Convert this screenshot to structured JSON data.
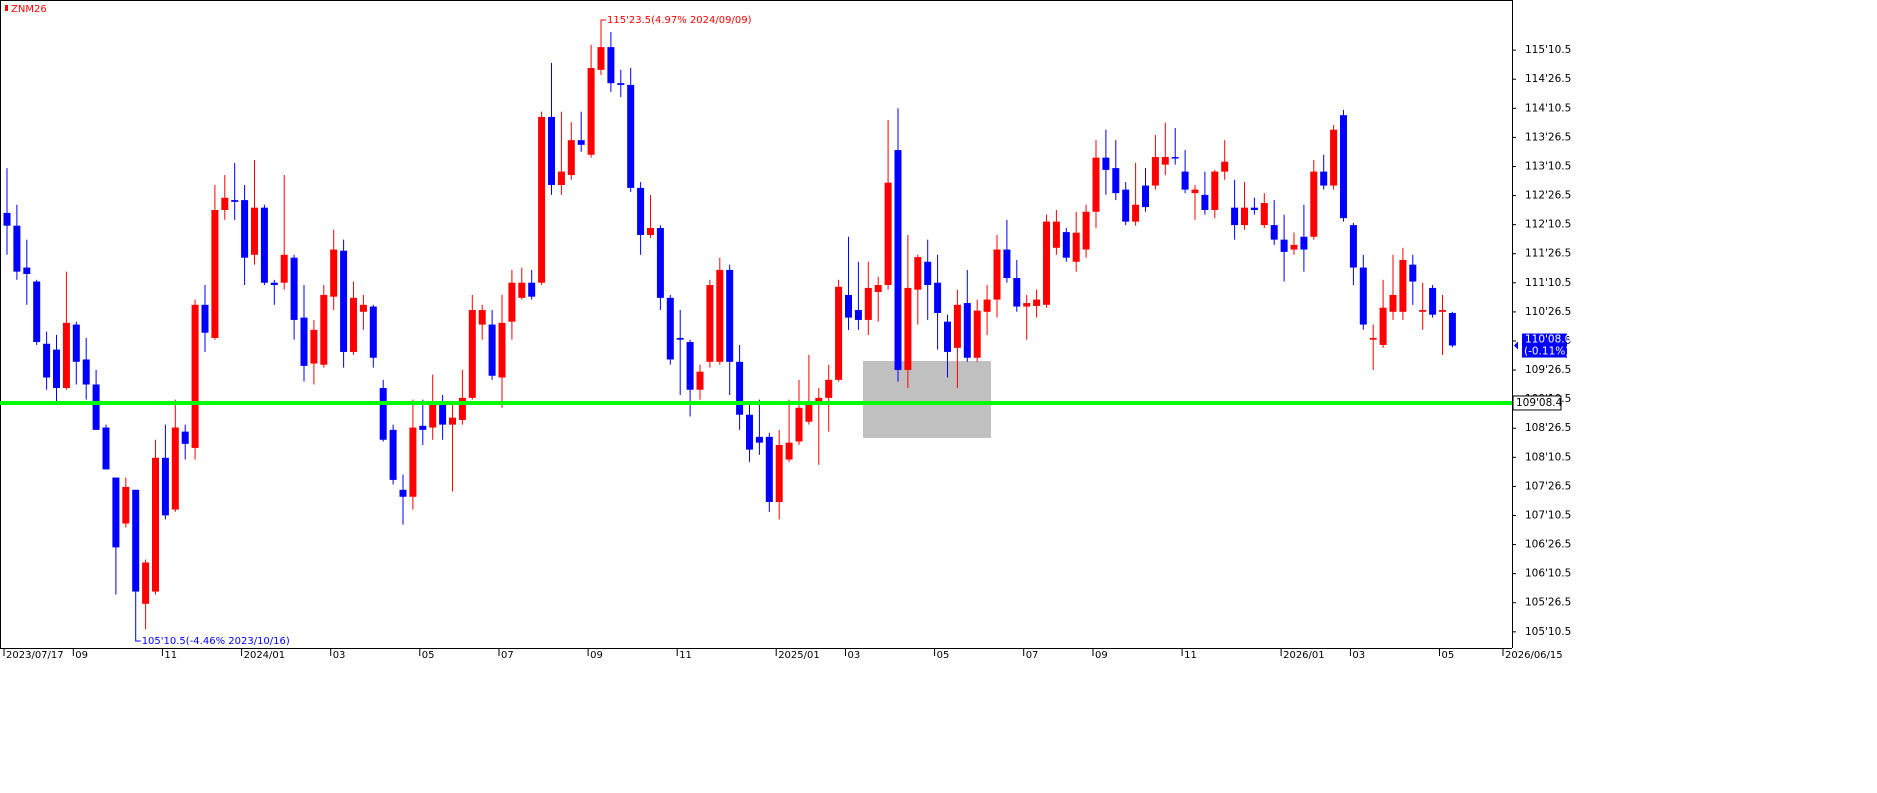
{
  "chart_data": {
    "type": "candlestick",
    "title": "ZNM26",
    "up_color": "#ff0000",
    "down_color": "#0000ff",
    "categories": [
      "2023/07/17",
      null,
      null,
      null,
      null,
      null,
      null,
      "09",
      null,
      null,
      null,
      null,
      null,
      null,
      null,
      null,
      "11",
      null,
      null,
      null,
      null,
      null,
      null,
      null,
      "2024/01",
      null,
      null,
      null,
      null,
      null,
      null,
      null,
      null,
      "03",
      null,
      null,
      null,
      null,
      null,
      null,
      null,
      null,
      "05",
      null,
      null,
      null,
      null,
      null,
      null,
      null,
      "07",
      null,
      null,
      null,
      null,
      null,
      null,
      null,
      null,
      "09",
      null,
      null,
      null,
      null,
      null,
      null,
      null,
      null,
      "11",
      null,
      null,
      null,
      null,
      null,
      null,
      null,
      null,
      null,
      "2025/01",
      null,
      null,
      null,
      null,
      null,
      null,
      "03",
      null,
      null,
      null,
      null,
      null,
      null,
      null,
      null,
      "05",
      null,
      null,
      null,
      null,
      null,
      null,
      null,
      null,
      "07",
      null,
      null,
      null,
      null,
      null,
      null,
      "09",
      null,
      null,
      null,
      null,
      null,
      null,
      null,
      null,
      "11",
      null,
      null,
      null,
      null,
      null,
      null,
      null,
      null,
      null,
      "2026/01",
      null,
      null,
      null,
      null,
      null,
      null,
      "03",
      null,
      null,
      null,
      null,
      null,
      null,
      null,
      null,
      "05",
      null
    ],
    "x_axis_end_label": "2026/06/15",
    "open": [
      112.53,
      112.31,
      111.59,
      111.35,
      110.28,
      110.18,
      109.52,
      110.61,
      110.01,
      109.58,
      108.84,
      107.98,
      107.19,
      107.77,
      105.81,
      106.02,
      108.32,
      107.43,
      108.77,
      108.49,
      110.95,
      110.38,
      112.58,
      112.75,
      112.75,
      111.81,
      112.62,
      111.33,
      111.33,
      111.76,
      110.73,
      109.94,
      109.92,
      111.09,
      111.88,
      110.14,
      110.83,
      110.92,
      109.52,
      108.8,
      107.77,
      107.65,
      108.87,
      108.84,
      109.27,
      108.89,
      108.97,
      109.35,
      110.61,
      110.61,
      109.7,
      110.66,
      111.07,
      111.33,
      111.33,
      114.18,
      113.01,
      113.18,
      113.78,
      113.53,
      114.99,
      115.38,
      114.76,
      114.73,
      112.96,
      112.15,
      112.27,
      111.07,
      110.38,
      110.31,
      109.49,
      109.97,
      109.97,
      111.55,
      109.97,
      109.06,
      108.68,
      108.68,
      107.56,
      108.29,
      108.6,
      108.94,
      109.28,
      109.35,
      109.66,
      111.12,
      110.86,
      110.69,
      111.17,
      111.29,
      113.61,
      109.83,
      111.21,
      111.69,
      111.33,
      110.66,
      110.21,
      110.98,
      110.04,
      110.83,
      111.04,
      111.9,
      111.41,
      110.92,
      110.93,
      110.95,
      111.93,
      112.2,
      111.69,
      111.9,
      112.55,
      113.48,
      113.3,
      112.93,
      112.38,
      113.0,
      113.0,
      113.36,
      113.49,
      113.24,
      112.87,
      112.84,
      112.58,
      113.24,
      112.62,
      112.32,
      112.62,
      112.32,
      112.32,
      112.07,
      111.9,
      112.12,
      112.12,
      113.24,
      113.0,
      114.21,
      112.32,
      111.59,
      110.35,
      110.26,
      110.83,
      110.83,
      111.64,
      110.83,
      111.24,
      110.83,
      110.81
    ],
    "high": [
      113.3,
      112.67,
      112.07,
      111.38,
      110.49,
      110.43,
      111.52,
      110.66,
      110.38,
      109.83,
      108.89,
      107.98,
      107.98,
      107.77,
      106.57,
      108.63,
      108.89,
      109.32,
      108.89,
      111.04,
      111.29,
      113.01,
      113.18,
      113.39,
      113.01,
      113.44,
      112.67,
      111.38,
      113.18,
      111.81,
      111.29,
      110.69,
      111.29,
      112.24,
      112.07,
      111.35,
      111.12,
      110.95,
      109.66,
      108.89,
      108.03,
      109.32,
      109.32,
      109.75,
      109.4,
      109.23,
      109.83,
      111.12,
      110.95,
      110.86,
      111.12,
      111.55,
      111.59,
      111.55,
      114.27,
      115.11,
      114.27,
      114.09,
      114.27,
      115.42,
      115.734375,
      115.64,
      114.99,
      115.02,
      113.06,
      112.84,
      112.32,
      111.12,
      110.86,
      110.35,
      109.92,
      111.38,
      111.76,
      111.64,
      110.26,
      109.23,
      109.32,
      108.75,
      108.8,
      109.32,
      109.66,
      110.09,
      109.52,
      109.92,
      111.38,
      112.12,
      111.69,
      111.69,
      111.43,
      114.13,
      114.33,
      112.15,
      111.81,
      112.07,
      111.81,
      110.78,
      111.21,
      111.55,
      111.04,
      111.29,
      112.15,
      112.41,
      111.72,
      111.12,
      111.21,
      112.5,
      112.58,
      112.27,
      112.55,
      112.67,
      113.78,
      113.96,
      113.78,
      113.06,
      113.39,
      113.3,
      113.87,
      114.08,
      113.99,
      113.61,
      113.01,
      113.24,
      113.27,
      113.78,
      113.1,
      113.06,
      112.79,
      112.87,
      112.75,
      112.5,
      112.19,
      112.67,
      113.44,
      113.53,
      114.04,
      114.3,
      112.36,
      111.81,
      110.61,
      111.38,
      111.81,
      111.93,
      111.81,
      111.33,
      111.29,
      111.12,
      110.83
    ],
    "low": [
      111.81,
      111.38,
      110.95,
      110.26,
      109.49,
      109.23,
      109.49,
      109.58,
      109.32,
      108.8,
      108.12,
      105.97,
      107.12,
      105.328125,
      105.37,
      105.97,
      107.26,
      107.39,
      108.29,
      108.29,
      110.14,
      110.35,
      112.41,
      112.41,
      111.29,
      111.64,
      111.29,
      110.95,
      111.21,
      110.35,
      109.63,
      109.58,
      109.87,
      110.86,
      109.87,
      110.09,
      110.52,
      109.87,
      108.6,
      107.86,
      107.17,
      107.43,
      108.54,
      108.63,
      108.63,
      107.74,
      108.89,
      109.32,
      110.35,
      109.66,
      109.18,
      110.35,
      111.04,
      111.04,
      111.29,
      112.84,
      112.84,
      113.1,
      113.58,
      113.48,
      114.9,
      114.61,
      114.52,
      112.89,
      111.81,
      112.1,
      110.86,
      109.92,
      109.4,
      109.03,
      109.32,
      109.87,
      109.92,
      109.4,
      108.8,
      108.25,
      108.37,
      107.39,
      107.26,
      108.25,
      108.54,
      108.89,
      108.2,
      108.77,
      109.63,
      110.52,
      110.52,
      110.43,
      110.66,
      111.21,
      109.63,
      109.52,
      110.61,
      110.69,
      110.18,
      109.7,
      109.52,
      109.97,
      109.97,
      110.43,
      110.73,
      111.33,
      110.83,
      110.35,
      110.73,
      110.9,
      111.81,
      111.69,
      111.52,
      111.76,
      112.27,
      112.84,
      112.75,
      112.32,
      112.31,
      112.55,
      112.93,
      113.18,
      113.36,
      112.87,
      112.41,
      112.5,
      112.44,
      113.1,
      112.07,
      112.24,
      112.5,
      112.27,
      111.98,
      111.35,
      111.81,
      111.52,
      112.07,
      112.93,
      112.93,
      112.38,
      111.29,
      110.52,
      109.83,
      110.21,
      110.69,
      110.69,
      110.95,
      110.52,
      110.73,
      110.09,
      110.22
    ],
    "close": [
      112.31,
      111.52,
      111.48,
      110.31,
      109.7,
      109.52,
      110.64,
      109.97,
      109.58,
      108.8,
      108.12,
      106.78,
      107.82,
      106.02,
      106.52,
      108.32,
      107.33,
      108.84,
      108.56,
      110.95,
      110.47,
      112.58,
      112.79,
      112.72,
      111.76,
      112.62,
      111.33,
      111.29,
      111.81,
      110.69,
      109.9,
      110.52,
      111.12,
      111.9,
      110.14,
      111.07,
      110.95,
      110.04,
      108.63,
      107.94,
      107.65,
      108.84,
      108.8,
      109.27,
      108.89,
      109.01,
      109.35,
      110.86,
      110.86,
      109.73,
      110.64,
      111.33,
      111.33,
      111.09,
      114.18,
      113.01,
      113.24,
      113.78,
      113.7,
      115.02,
      115.38,
      114.76,
      114.73,
      112.96,
      112.15,
      112.27,
      111.07,
      110.01,
      110.35,
      109.49,
      109.8,
      111.29,
      111.55,
      109.97,
      109.06,
      108.46,
      108.58,
      107.56,
      108.54,
      108.58,
      109.18,
      109.27,
      109.35,
      109.66,
      111.26,
      110.73,
      110.69,
      111.24,
      111.29,
      113.05,
      109.83,
      111.24,
      111.77,
      111.29,
      110.81,
      110.14,
      110.95,
      110.04,
      110.85,
      111.04,
      111.9,
      111.41,
      110.92,
      110.98,
      111.04,
      112.38,
      112.38,
      111.76,
      112.19,
      112.55,
      113.48,
      113.27,
      112.87,
      112.38,
      112.67,
      112.63,
      113.49,
      113.49,
      113.48,
      112.93,
      112.93,
      112.58,
      113.24,
      113.41,
      112.32,
      112.62,
      112.58,
      112.7,
      112.07,
      111.86,
      111.98,
      111.9,
      113.24,
      113.0,
      113.96,
      112.44,
      111.59,
      110.61,
      110.38,
      110.9,
      111.12,
      111.72,
      111.35,
      110.86,
      110.78,
      110.86,
      110.25
    ],
    "ylim": [
      105.05,
      116.19
    ],
    "yticks": [
      {
        "value": 105.328125,
        "label": "105'10.5"
      },
      {
        "value": 105.828125,
        "label": "105'26.5"
      },
      {
        "value": 106.328125,
        "label": "106'10.5"
      },
      {
        "value": 106.828125,
        "label": "106'26.5"
      },
      {
        "value": 107.328125,
        "label": "107'10.5"
      },
      {
        "value": 107.828125,
        "label": "107'26.5"
      },
      {
        "value": 108.328125,
        "label": "108'10.5"
      },
      {
        "value": 108.828125,
        "label": "108'26.5"
      },
      {
        "value": 109.328125,
        "label": "109'10.5"
      },
      {
        "value": 109.828125,
        "label": "109'26.5"
      },
      {
        "value": 110.328125,
        "label": "110'10.5"
      },
      {
        "value": 110.828125,
        "label": "110'26.5"
      },
      {
        "value": 111.328125,
        "label": "111'10.5"
      },
      {
        "value": 111.828125,
        "label": "111'26.5"
      },
      {
        "value": 112.328125,
        "label": "112'10.5"
      },
      {
        "value": 112.828125,
        "label": "112'26.5"
      },
      {
        "value": 113.328125,
        "label": "113'10.5"
      },
      {
        "value": 113.828125,
        "label": "113'26.5"
      },
      {
        "value": 114.328125,
        "label": "114'10.5"
      },
      {
        "value": 114.828125,
        "label": "114'26.5"
      },
      {
        "value": 115.328125,
        "label": "115'10.5"
      }
    ],
    "high_annotation": {
      "value": 115.734375,
      "label": "115'23.5(4.97% 2024/09/09)",
      "color": "#ff0000"
    },
    "low_annotation": {
      "value": 105.328125,
      "label": "105'10.5(-4.46% 2023/10/16)",
      "color": "#0000ff"
    },
    "reference_line": {
      "value": 109.2625,
      "label": "109'08.4",
      "color": "#00ff00"
    },
    "last_price": {
      "value": 110.25,
      "label": "110'08.0",
      "change": "(-0.11%)",
      "color": "#0000ff"
    }
  }
}
